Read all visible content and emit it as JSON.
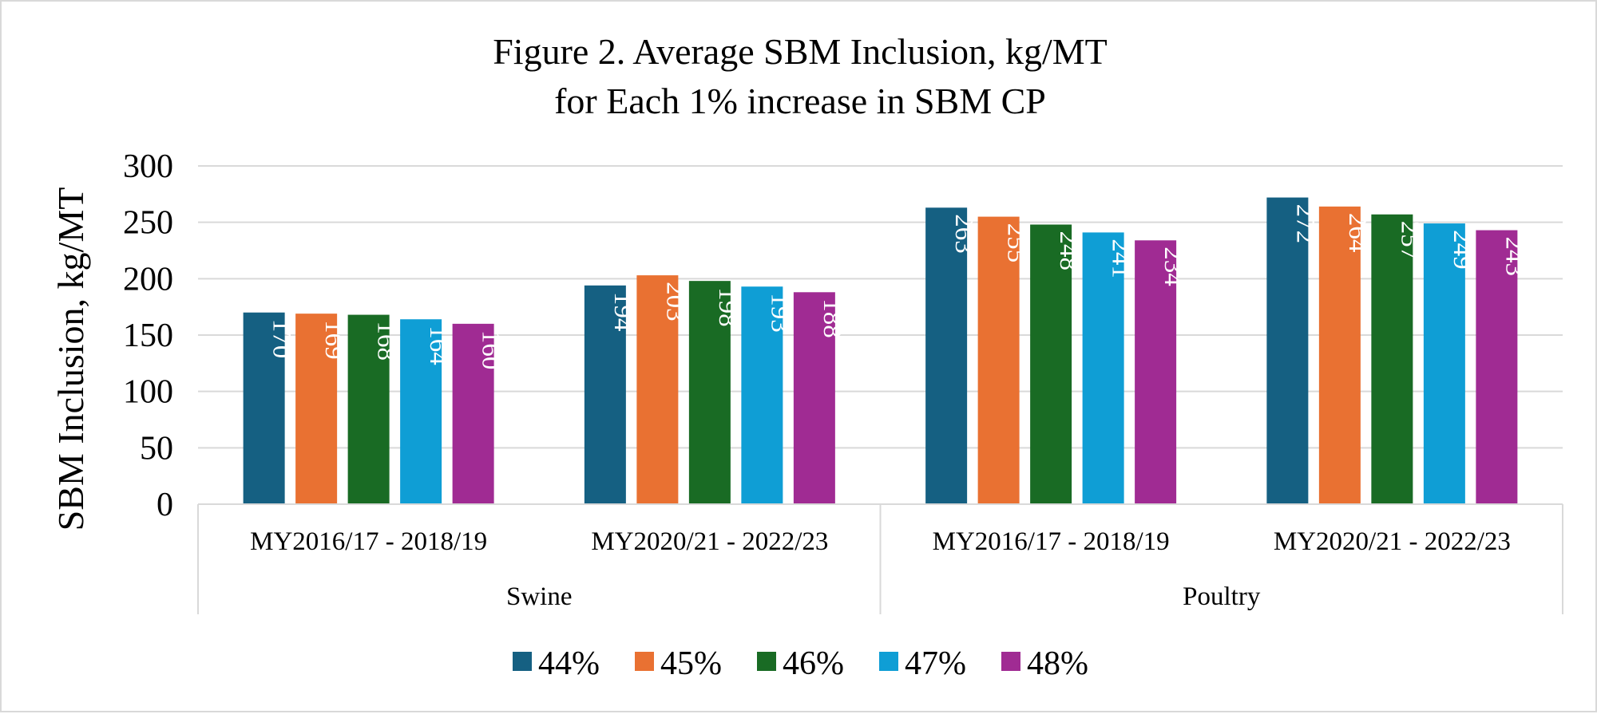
{
  "chart_data": {
    "type": "bar",
    "title": "Figure 2. Average SBM Inclusion, kg/MT",
    "subtitle": "for Each 1% increase in SBM CP",
    "xlabel": "",
    "ylabel": "SBM Inclusion, kg/MT",
    "ylim": [
      0,
      300
    ],
    "yticks": [
      "0",
      "50",
      "100",
      "150",
      "200",
      "250",
      "300"
    ],
    "ytick_values": [
      0,
      50,
      100,
      150,
      200,
      250,
      300
    ],
    "grid": true,
    "legend_position": "bottom",
    "groups": [
      "Swine",
      "Poultry"
    ],
    "categories": [
      "MY2016/17 - 2018/19",
      "MY2020/21 - 2022/23",
      "MY2016/17 - 2018/19",
      "MY2020/21 - 2022/23"
    ],
    "category_groups": [
      0,
      0,
      1,
      1
    ],
    "series": [
      {
        "name": "44%",
        "color": "#156082",
        "values": [
          170,
          194,
          263,
          272
        ]
      },
      {
        "name": "45%",
        "color": "#e97132",
        "values": [
          169,
          203,
          255,
          264
        ]
      },
      {
        "name": "46%",
        "color": "#196b24",
        "values": [
          168,
          198,
          248,
          257
        ]
      },
      {
        "name": "47%",
        "color": "#0f9ed5",
        "values": [
          164,
          193,
          241,
          249
        ]
      },
      {
        "name": "48%",
        "color": "#a02b93",
        "values": [
          160,
          188,
          234,
          243
        ]
      }
    ]
  }
}
